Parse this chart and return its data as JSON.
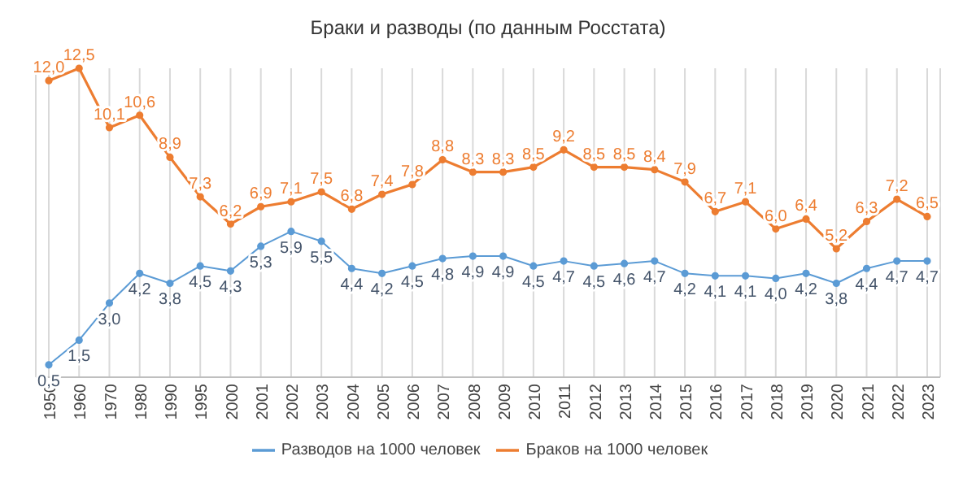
{
  "chart_data": {
    "type": "line",
    "title": "Браки и разводы (по данным Росстата)",
    "categories": [
      "1950",
      "1960",
      "1970",
      "1980",
      "1990",
      "1995",
      "2000",
      "2001",
      "2002",
      "2003",
      "2004",
      "2005",
      "2006",
      "2007",
      "2008",
      "2009",
      "2010",
      "2011",
      "2012",
      "2013",
      "2014",
      "2015",
      "2016",
      "2017",
      "2018",
      "2019",
      "2020",
      "2021",
      "2022",
      "2023"
    ],
    "series": [
      {
        "name": "Разводов на 1000 человек",
        "color": "#5b9bd5",
        "values": [
          0.5,
          1.5,
          3.0,
          4.2,
          3.8,
          4.5,
          4.3,
          5.3,
          5.9,
          5.5,
          4.4,
          4.2,
          4.5,
          4.8,
          4.9,
          4.9,
          4.5,
          4.7,
          4.5,
          4.6,
          4.7,
          4.2,
          4.1,
          4.1,
          4.0,
          4.2,
          3.8,
          4.4,
          4.7,
          4.7
        ],
        "value_labels": [
          "0,5",
          "1,5",
          "3,0",
          "4,2",
          "3,8",
          "4,5",
          "4,3",
          "5,3",
          "5,9",
          "5,5",
          "4,4",
          "4,2",
          "4,5",
          "4,8",
          "4,9",
          "4,9",
          "4,5",
          "4,7",
          "4,5",
          "4,6",
          "4,7",
          "4,2",
          "4,1",
          "4,1",
          "4,0",
          "4,2",
          "3,8",
          "4,4",
          "4,7",
          "4,7"
        ]
      },
      {
        "name": "Браков на 1000 человек",
        "color": "#ed7d31",
        "values": [
          12.0,
          12.5,
          10.1,
          10.6,
          8.9,
          7.3,
          6.2,
          6.9,
          7.1,
          7.5,
          6.8,
          7.4,
          7.8,
          8.8,
          8.3,
          8.3,
          8.5,
          9.2,
          8.5,
          8.5,
          8.4,
          7.9,
          6.7,
          7.1,
          6.0,
          6.4,
          5.2,
          6.3,
          7.2,
          6.5
        ],
        "value_labels": [
          "12,0",
          "12,5",
          "10,1",
          "10,6",
          "8,9",
          "7,3",
          "6,2",
          "6,9",
          "7,1",
          "7,5",
          "6,8",
          "7,4",
          "7,8",
          "8,8",
          "8,3",
          "8,3",
          "8,5",
          "9,2",
          "8,5",
          "8,5",
          "8,4",
          "7,9",
          "6,7",
          "7,1",
          "6,0",
          "6,4",
          "5,2",
          "6,3",
          "7,2",
          "6,5"
        ]
      }
    ],
    "grid": "x",
    "legend": "bottom",
    "marker": "circle",
    "line_style": "solid",
    "tick_labels": "x"
  }
}
